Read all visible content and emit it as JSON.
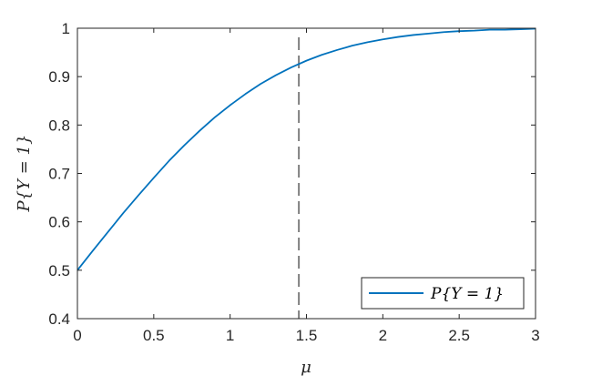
{
  "chart_data": {
    "type": "line",
    "title": "",
    "xlabel": "μ",
    "ylabel": "P{Y = 1}",
    "xlim": [
      0,
      3
    ],
    "ylim": [
      0.4,
      1
    ],
    "xticks": [
      0,
      0.5,
      1,
      1.5,
      2,
      2.5,
      3
    ],
    "xtick_labels": [
      "0",
      "0.5",
      "1",
      "1.5",
      "2",
      "2.5",
      "3"
    ],
    "yticks": [
      0.4,
      0.5,
      0.6,
      0.7,
      0.8,
      0.9,
      1
    ],
    "ytick_labels": [
      "0.4",
      "0.5",
      "0.6",
      "0.7",
      "0.8",
      "0.9",
      "1"
    ],
    "grid": false,
    "legend_position": "bottom-right",
    "series": [
      {
        "name": "P{Y = 1}",
        "color": "#0072BD",
        "x": [
          0,
          0.1,
          0.2,
          0.3,
          0.4,
          0.5,
          0.6,
          0.7,
          0.8,
          0.9,
          1.0,
          1.1,
          1.2,
          1.3,
          1.4,
          1.5,
          1.6,
          1.7,
          1.8,
          1.9,
          2.0,
          2.1,
          2.2,
          2.3,
          2.4,
          2.5,
          2.6,
          2.7,
          2.8,
          2.9,
          3.0
        ],
        "y": [
          0.5,
          0.54,
          0.579,
          0.618,
          0.655,
          0.691,
          0.726,
          0.758,
          0.788,
          0.816,
          0.841,
          0.864,
          0.885,
          0.903,
          0.919,
          0.933,
          0.945,
          0.955,
          0.964,
          0.971,
          0.977,
          0.982,
          0.986,
          0.989,
          0.992,
          0.994,
          0.995,
          0.997,
          0.997,
          0.998,
          0.999
        ]
      }
    ],
    "reference_line": {
      "orientation": "vertical",
      "x": 1.45,
      "style": "dashed",
      "color": "#7F7F7F"
    }
  }
}
